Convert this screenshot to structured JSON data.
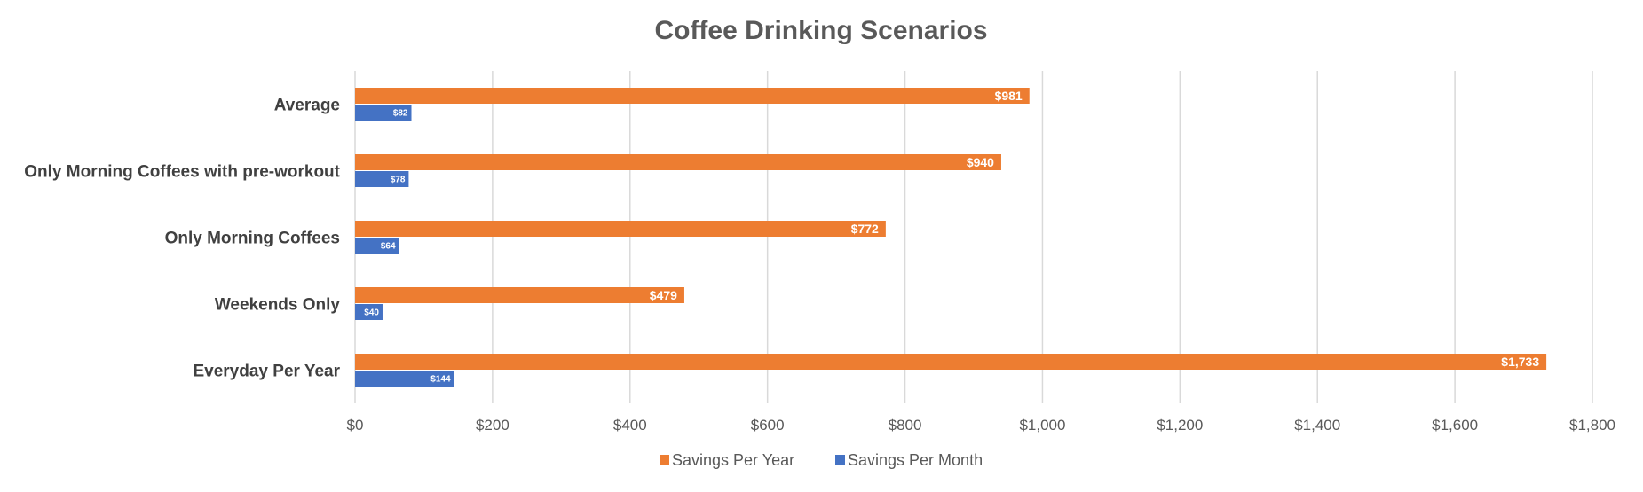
{
  "chart_data": {
    "type": "bar",
    "orientation": "horizontal",
    "title": "Coffee Drinking Scenarios",
    "categories": [
      "Average",
      "Only Morning Coffees with pre-workout",
      "Only Morning Coffees",
      "Weekends Only",
      "Everyday Per Year"
    ],
    "series": [
      {
        "name": "Savings Per Year",
        "color": "#ED7D31",
        "values": [
          981,
          940,
          772,
          479,
          1733
        ],
        "labels": [
          "$981",
          "$940",
          "$772",
          "$479",
          "$1,733"
        ]
      },
      {
        "name": "Savings Per Month",
        "color": "#4472C4",
        "values": [
          82,
          78,
          64,
          40,
          144
        ],
        "labels": [
          "$82",
          "$78",
          "$64",
          "$40",
          "$144"
        ]
      }
    ],
    "xlim": [
      0,
      1800
    ],
    "x_ticks": [
      0,
      200,
      400,
      600,
      800,
      1000,
      1200,
      1400,
      1600,
      1800
    ],
    "x_tick_labels": [
      "$0",
      "$200",
      "$400",
      "$600",
      "$800",
      "$1,000",
      "$1,200",
      "$1,400",
      "$1,600",
      "$1,800"
    ],
    "grid": "vertical",
    "legend": "bottom"
  }
}
